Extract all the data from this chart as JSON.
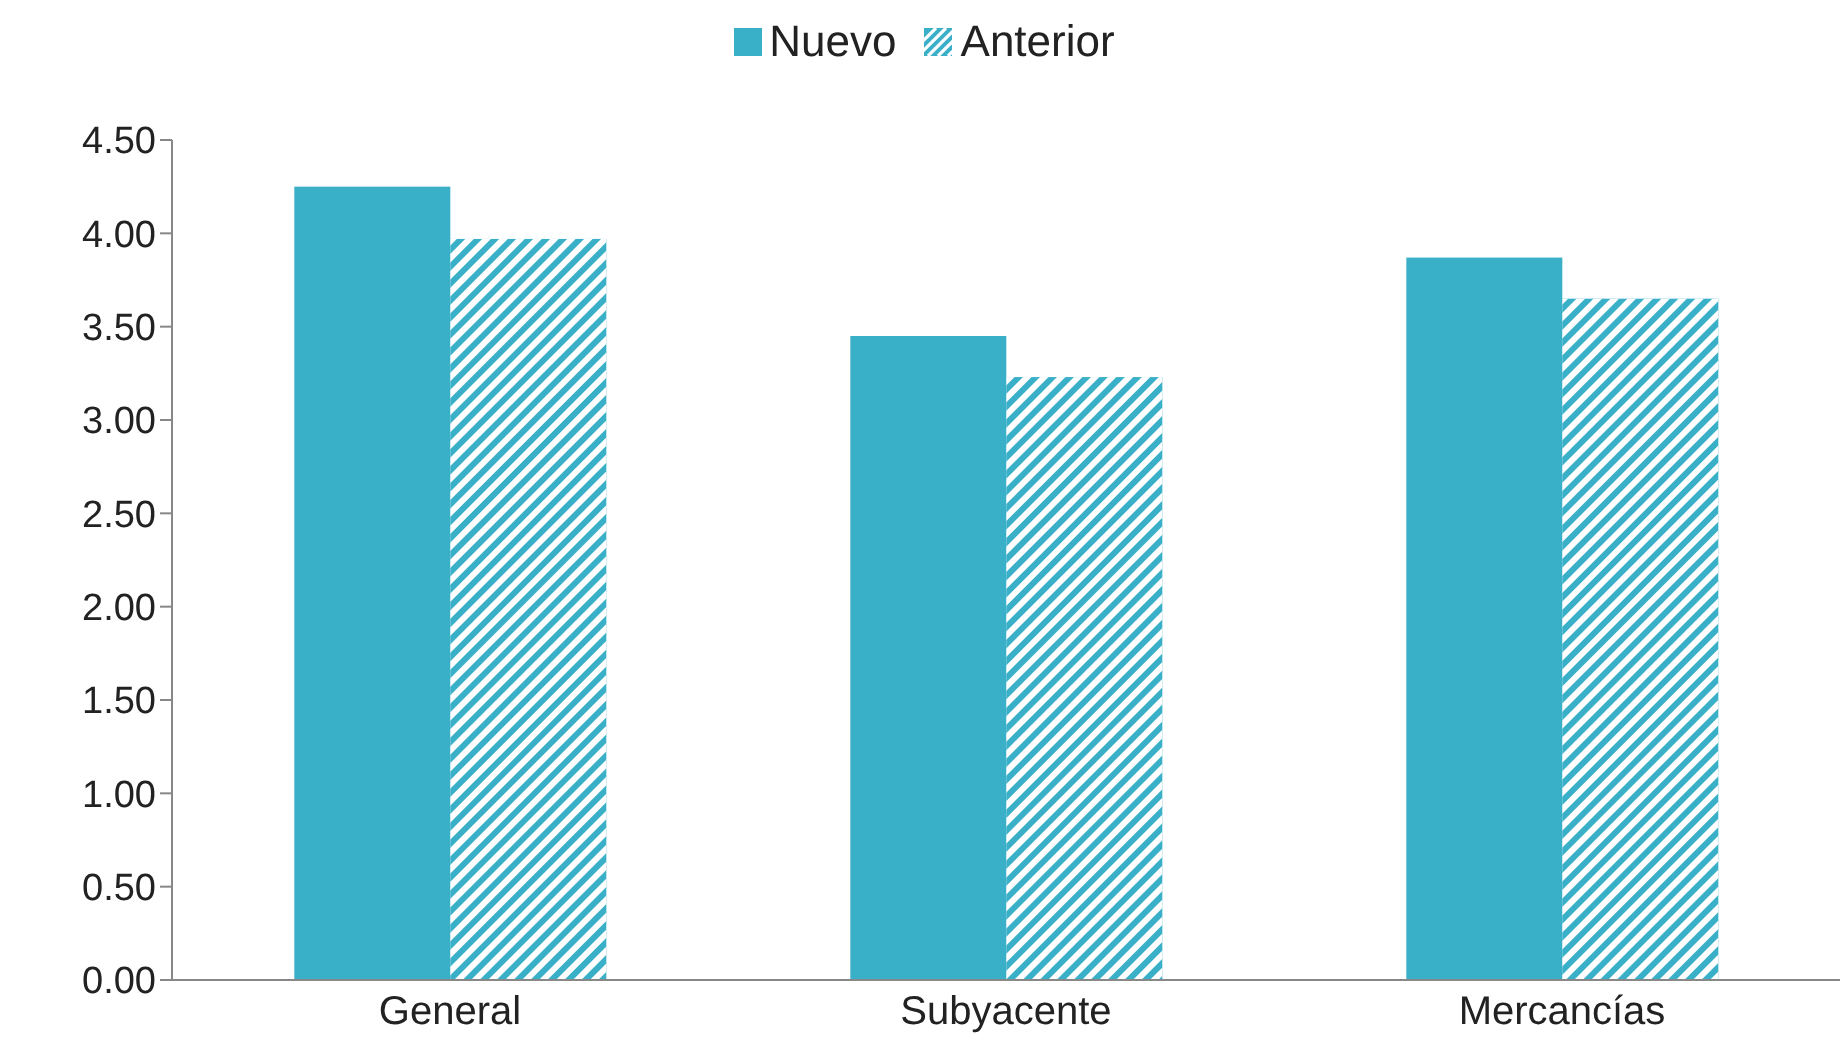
{
  "chart_data": {
    "type": "bar",
    "categories": [
      "General",
      "Subyacente",
      "Mercancías"
    ],
    "series": [
      {
        "name": "Nuevo",
        "color": "#3aafc8",
        "values": [
          4.25,
          3.45,
          3.87
        ]
      },
      {
        "name": "Anterior",
        "color": "#3aafc8",
        "values": [
          3.97,
          3.23,
          3.65
        ]
      }
    ],
    "ylim": [
      0,
      4.5
    ],
    "yticks": [
      {
        "value": 0,
        "label": "0.00"
      },
      {
        "value": 0.5,
        "label": "0.50"
      },
      {
        "value": 1,
        "label": "1.00"
      },
      {
        "value": 1.5,
        "label": "1.50"
      },
      {
        "value": 2,
        "label": "2.00"
      },
      {
        "value": 2.5,
        "label": "2.50"
      },
      {
        "value": 3,
        "label": "3.00"
      },
      {
        "value": 3.5,
        "label": "3.50"
      },
      {
        "value": 4,
        "label": "4.00"
      },
      {
        "value": 4.5,
        "label": "4.50"
      }
    ],
    "grid": false,
    "legend": "top"
  }
}
